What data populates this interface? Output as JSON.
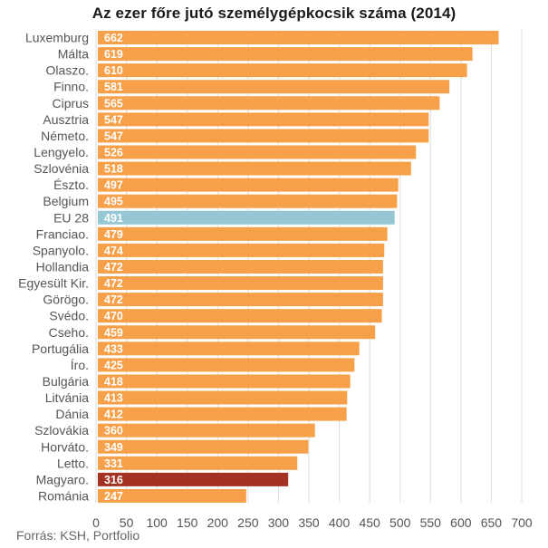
{
  "chart_data": {
    "type": "bar",
    "orientation": "horizontal",
    "title": "Az ezer főre jutó személygépkocsik száma  (2014)",
    "source": "Forrás: KSH, Portfolio",
    "categories": [
      "Luxemburg",
      "Málta",
      "Olaszo.",
      "Finno.",
      "Ciprus",
      "Ausztria",
      "Németo.",
      "Lengyelo.",
      "Szlovénia",
      "Észto.",
      "Belgium",
      "EU 28",
      "Franciao.",
      "Spanyolo.",
      "Hollandia",
      "Egyesült Kir.",
      "Görögo.",
      "Svédo.",
      "Cseho.",
      "Portugália",
      "Íro.",
      "Bulgária",
      "Litvánia",
      "Dánia",
      "Szlovákia",
      "Horváto.",
      "Letto.",
      "Magyaro.",
      "Románia"
    ],
    "values": [
      662,
      619,
      610,
      581,
      565,
      547,
      547,
      526,
      518,
      497,
      495,
      491,
      479,
      474,
      472,
      472,
      472,
      470,
      459,
      433,
      425,
      418,
      413,
      412,
      360,
      349,
      331,
      316,
      247
    ],
    "xlim": [
      0,
      700
    ],
    "xticks": [
      0,
      50,
      100,
      150,
      200,
      250,
      300,
      350,
      400,
      450,
      500,
      550,
      600,
      650,
      700
    ],
    "grid": true,
    "colors": {
      "default": "#F7A04A",
      "highlight_eu": "#95C8D2",
      "highlight_hu": "#A33223",
      "grid": "#DDDDDD"
    },
    "highlights": {
      "EU 28": "highlight_eu",
      "Magyaro.": "highlight_hu"
    }
  }
}
